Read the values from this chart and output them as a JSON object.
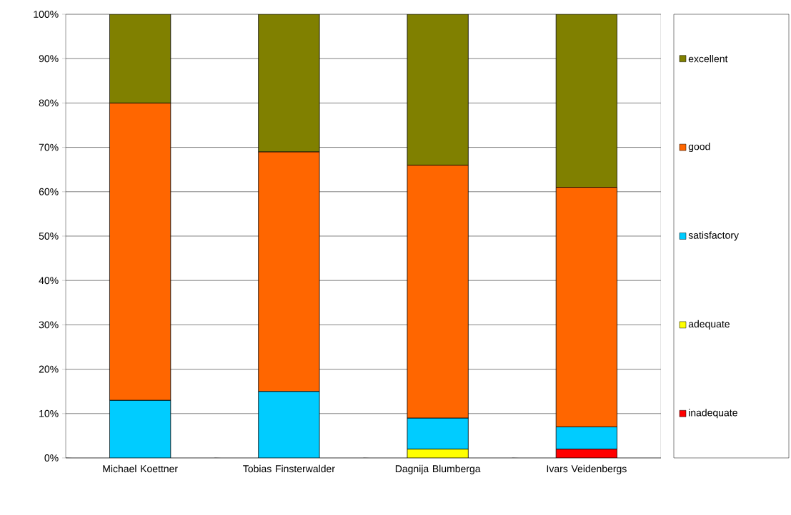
{
  "chart_data": {
    "type": "bar",
    "stacked": true,
    "categories": [
      "Michael Koettner",
      "Tobias Finsterwalder",
      "Dagnija Blumberga",
      "Ivars Veidenbergs"
    ],
    "series": [
      {
        "name": "inadequate",
        "color": "#ff0000",
        "values": [
          0,
          0,
          0,
          2
        ]
      },
      {
        "name": "adequate",
        "color": "#ffff00",
        "values": [
          0,
          0,
          2,
          0
        ]
      },
      {
        "name": "satisfactory",
        "color": "#00ccff",
        "values": [
          13,
          15,
          7,
          5
        ]
      },
      {
        "name": "good",
        "color": "#ff6600",
        "values": [
          67,
          54,
          57,
          54
        ]
      },
      {
        "name": "excellent",
        "color": "#808000",
        "values": [
          20,
          31,
          34,
          39
        ]
      }
    ],
    "ylim": [
      0,
      100
    ],
    "yticks": [
      {
        "value": 0,
        "label": "0%"
      },
      {
        "value": 10,
        "label": "10%"
      },
      {
        "value": 20,
        "label": "20%"
      },
      {
        "value": 30,
        "label": "30%"
      },
      {
        "value": 40,
        "label": "40%"
      },
      {
        "value": 50,
        "label": "50%"
      },
      {
        "value": 60,
        "label": "60%"
      },
      {
        "value": 70,
        "label": "70%"
      },
      {
        "value": 80,
        "label": "80%"
      },
      {
        "value": 90,
        "label": "90%"
      },
      {
        "value": 100,
        "label": "100%"
      }
    ],
    "grid": "y",
    "legend": "right"
  }
}
